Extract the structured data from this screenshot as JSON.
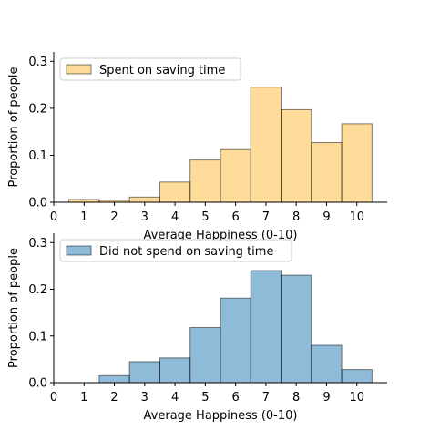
{
  "chart_data": [
    {
      "type": "bar",
      "bins": [
        "0.5-1.5",
        "1.5-2.5",
        "2.5-3.5",
        "3.5-4.5",
        "4.5-5.5",
        "5.5-6.5",
        "6.5-7.5",
        "7.5-8.5",
        "8.5-9.5",
        "9.5-10.5"
      ],
      "bin_edges": [
        0.5,
        1.5,
        2.5,
        3.5,
        4.5,
        5.5,
        6.5,
        7.5,
        8.5,
        9.5,
        10.5
      ],
      "series": [
        {
          "name": "Spent on saving time",
          "color": "#ffb833",
          "values": [
            0.006,
            0.004,
            0.011,
            0.043,
            0.09,
            0.112,
            0.245,
            0.197,
            0.127,
            0.167
          ]
        }
      ],
      "xticks": [
        0,
        1,
        2,
        3,
        4,
        5,
        6,
        7,
        8,
        9,
        10
      ],
      "yticks": [
        "0.0",
        "0.1",
        "0.2",
        "0.3"
      ],
      "xlim": [
        0,
        11
      ],
      "ylim": [
        0,
        0.32
      ],
      "xlabel": "Average Happiness (0-10)",
      "ylabel": "Proportion of people",
      "legend_placement": "upper-left",
      "grid": false
    },
    {
      "type": "bar",
      "bins": [
        "0.5-1.5",
        "1.5-2.5",
        "2.5-3.5",
        "3.5-4.5",
        "4.5-5.5",
        "5.5-6.5",
        "6.5-7.5",
        "7.5-8.5",
        "8.5-9.5",
        "9.5-10.5"
      ],
      "bin_edges": [
        0.5,
        1.5,
        2.5,
        3.5,
        4.5,
        5.5,
        6.5,
        7.5,
        8.5,
        9.5,
        10.5
      ],
      "series": [
        {
          "name": "Did not spend on saving time",
          "color": "#1f77b4",
          "values": [
            0.0,
            0.015,
            0.045,
            0.053,
            0.118,
            0.181,
            0.24,
            0.23,
            0.08,
            0.028
          ]
        }
      ],
      "xticks": [
        0,
        1,
        2,
        3,
        4,
        5,
        6,
        7,
        8,
        9,
        10
      ],
      "yticks": [
        "0.0",
        "0.1",
        "0.2",
        "0.3"
      ],
      "xlim": [
        0,
        11
      ],
      "ylim": [
        0,
        0.32
      ],
      "xlabel": "Average Happiness (0-10)",
      "ylabel": "Proportion of people",
      "legend_placement": "upper-left",
      "grid": false
    }
  ]
}
